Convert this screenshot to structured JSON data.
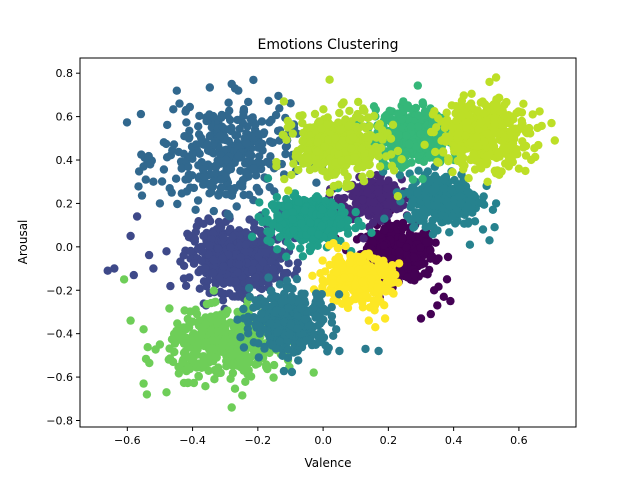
{
  "chart_data": {
    "type": "scatter",
    "title": "Emotions Clustering",
    "xlabel": "Valence",
    "ylabel": "Arousal",
    "xlim": [
      -0.745,
      0.775
    ],
    "ylim": [
      -0.83,
      0.87
    ],
    "xticks": [
      -0.6,
      -0.4,
      -0.2,
      0.0,
      0.2,
      0.4,
      0.6
    ],
    "yticks": [
      -0.8,
      -0.6,
      -0.4,
      -0.2,
      0.0,
      0.2,
      0.4,
      0.6,
      0.8
    ],
    "grid": false,
    "legend": "none",
    "colormap": "viridis",
    "series": [
      {
        "color": "#440154",
        "center": [
          0.23,
          -0.03
        ],
        "spread": [
          0.055,
          0.06
        ],
        "count": 420,
        "outliers": [
          [
            0.35,
            -0.27
          ],
          [
            0.33,
            -0.31
          ],
          [
            0.3,
            -0.33
          ],
          [
            0.37,
            -0.23
          ],
          [
            0.34,
            -0.2
          ],
          [
            0.39,
            -0.25
          ]
        ]
      },
      {
        "color": "#482878",
        "center": [
          0.15,
          0.22
        ],
        "spread": [
          0.045,
          0.045
        ],
        "count": 330,
        "outliers": []
      },
      {
        "color": "#3e4989",
        "center": [
          -0.27,
          -0.05
        ],
        "spread": [
          0.07,
          0.075
        ],
        "count": 520,
        "outliers": [
          [
            -0.64,
            -0.1
          ],
          [
            -0.66,
            -0.11
          ],
          [
            -0.58,
            -0.13
          ],
          [
            -0.59,
            0.05
          ],
          [
            -0.52,
            -0.1
          ],
          [
            -0.57,
            0.14
          ]
        ]
      },
      {
        "color": "#31688e",
        "center": [
          -0.3,
          0.42
        ],
        "spread": [
          0.1,
          0.12
        ],
        "count": 330,
        "outliers": [
          [
            -0.55,
            0.37
          ],
          [
            -0.53,
            0.38
          ],
          [
            -0.52,
            0.3
          ],
          [
            -0.5,
            0.2
          ],
          [
            -0.47,
            0.27
          ],
          [
            -0.28,
            0.75
          ],
          [
            -0.26,
            0.72
          ],
          [
            -0.44,
            0.66
          ],
          [
            -0.42,
            0.63
          ]
        ]
      },
      {
        "color": "#26828e",
        "center": [
          0.37,
          0.22
        ],
        "spread": [
          0.055,
          0.06
        ],
        "count": 320,
        "outliers": [
          [
            0.45,
            0.01
          ],
          [
            0.51,
            0.03
          ],
          [
            0.49,
            0.08
          ],
          [
            0.53,
            0.2
          ]
        ]
      },
      {
        "color": "#1f9e89",
        "center": [
          -0.05,
          0.12
        ],
        "spread": [
          0.06,
          0.055
        ],
        "count": 360,
        "outliers": []
      },
      {
        "color": "#35b779",
        "center": [
          0.27,
          0.51
        ],
        "spread": [
          0.055,
          0.065
        ],
        "count": 380,
        "outliers": []
      },
      {
        "color": "#6ece58",
        "center": [
          -0.3,
          -0.45
        ],
        "spread": [
          0.085,
          0.075
        ],
        "count": 420,
        "outliers": [
          [
            -0.61,
            -0.15
          ],
          [
            -0.59,
            -0.34
          ],
          [
            -0.55,
            -0.38
          ],
          [
            -0.55,
            -0.63
          ],
          [
            -0.54,
            -0.68
          ],
          [
            -0.48,
            -0.67
          ],
          [
            -0.28,
            -0.74
          ],
          [
            -0.5,
            -0.45
          ]
        ]
      },
      {
        "color": "#b5de2b",
        "center": [
          0.05,
          0.46
        ],
        "spread": [
          0.07,
          0.075
        ],
        "count": 420,
        "outliers": [
          [
            0.02,
            0.77
          ],
          [
            -0.12,
            0.67
          ]
        ]
      },
      {
        "color": "#bddf26",
        "center": [
          0.49,
          0.52
        ],
        "spread": [
          0.07,
          0.075
        ],
        "count": 380,
        "outliers": [
          [
            0.71,
            0.49
          ],
          [
            0.7,
            0.57
          ],
          [
            0.62,
            0.35
          ],
          [
            0.6,
            0.36
          ],
          [
            0.53,
            0.78
          ],
          [
            0.51,
            0.76
          ]
        ]
      },
      {
        "color": "#fde725",
        "center": [
          0.1,
          -0.15
        ],
        "spread": [
          0.055,
          0.055
        ],
        "count": 320,
        "outliers": [
          [
            0.16,
            -0.37
          ],
          [
            0.19,
            -0.33
          ],
          [
            0.14,
            -0.34
          ]
        ]
      },
      {
        "color": "#2a7b8e",
        "center": [
          -0.1,
          -0.34
        ],
        "spread": [
          0.06,
          0.07
        ],
        "count": 380,
        "outliers": [
          [
            0.05,
            -0.48
          ],
          [
            0.13,
            -0.47
          ],
          [
            0.17,
            -0.48
          ],
          [
            0.04,
            -0.38
          ]
        ]
      }
    ]
  }
}
